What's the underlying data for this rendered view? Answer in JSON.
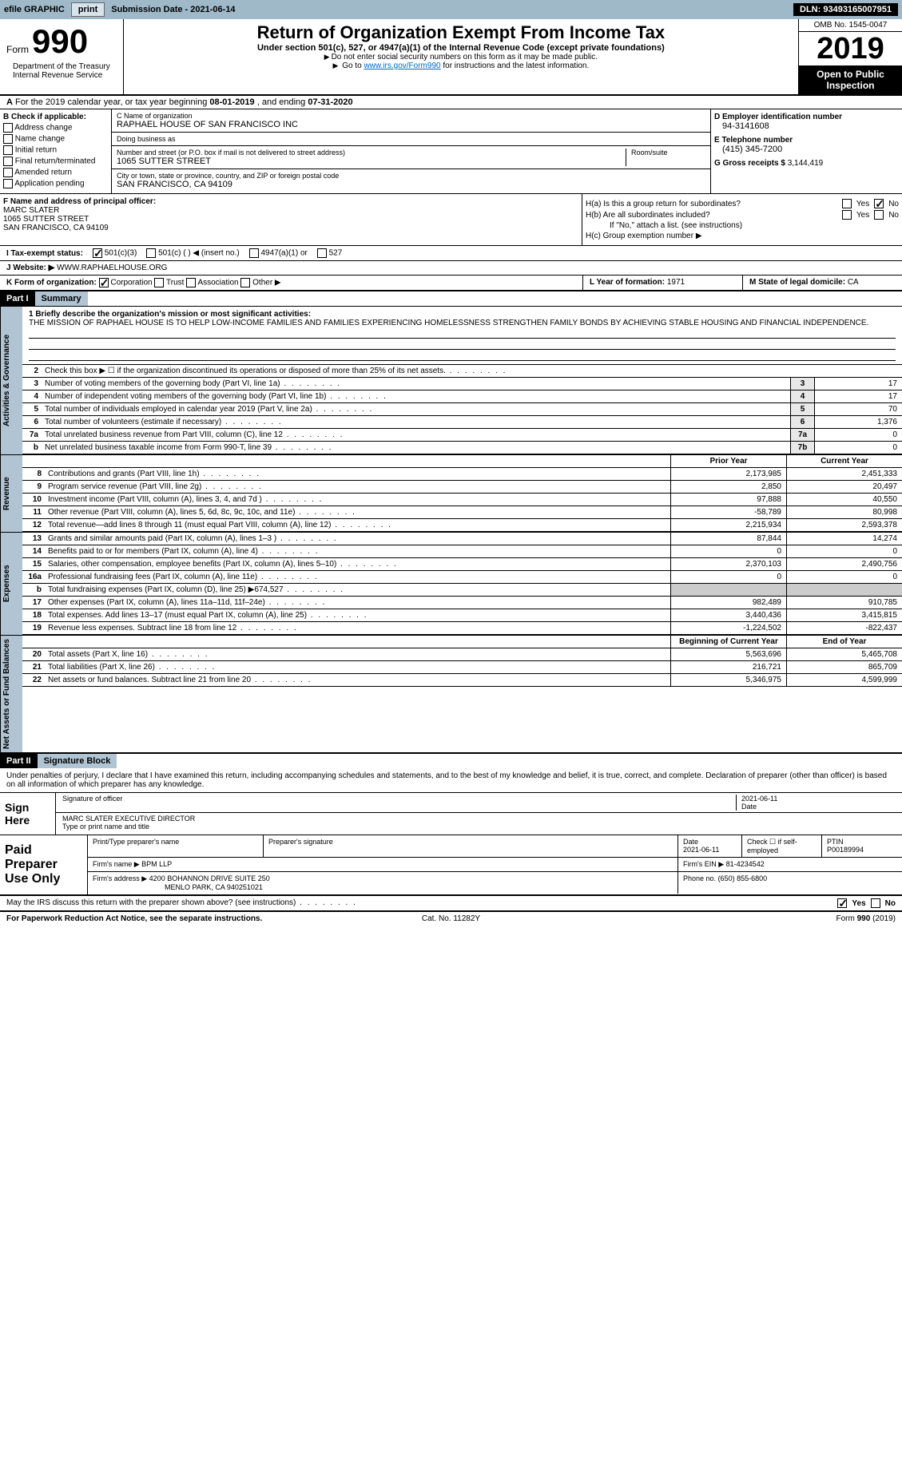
{
  "toolbar": {
    "efile": "efile GRAPHIC",
    "print": "print",
    "sub_label": "Submission Date - ",
    "sub_date": "2021-06-14",
    "dln": "DLN: 93493165007951"
  },
  "header": {
    "form_word": "Form",
    "form_num": "990",
    "title": "Return of Organization Exempt From Income Tax",
    "subtitle": "Under section 501(c), 527, or 4947(a)(1) of the Internal Revenue Code (except private foundations)",
    "note1": "Do not enter social security numbers on this form as it may be made public.",
    "note2_pre": "Go to ",
    "note2_link": "www.irs.gov/Form990",
    "note2_post": " for instructions and the latest information.",
    "omb": "OMB No. 1545-0047",
    "year": "2019",
    "open_pub": "Open to Public Inspection",
    "dept": "Department of the Treasury\nInternal Revenue Service"
  },
  "row_a": {
    "prefix": "A",
    "text": "For the 2019 calendar year, or tax year beginning ",
    "begin": "08-01-2019",
    "mid": " , and ending ",
    "end": "07-31-2020"
  },
  "b": {
    "label": "B Check if applicable:",
    "opts": [
      "Address change",
      "Name change",
      "Initial return",
      "Final return/terminated",
      "Amended return",
      "Application pending"
    ]
  },
  "c": {
    "name_label": "C Name of organization",
    "name": "RAPHAEL HOUSE OF SAN FRANCISCO INC",
    "dba_label": "Doing business as",
    "dba": "",
    "addr_label": "Number and street (or P.O. box if mail is not delivered to street address)",
    "room_label": "Room/suite",
    "addr": "1065 SUTTER STREET",
    "city_label": "City or town, state or province, country, and ZIP or foreign postal code",
    "city": "SAN FRANCISCO, CA  94109"
  },
  "d": {
    "ein_label": "D Employer identification number",
    "ein": "94-3141608",
    "phone_label": "E Telephone number",
    "phone": "(415) 345-7200",
    "gross_label": "G Gross receipts $ ",
    "gross": "3,144,419"
  },
  "f": {
    "label": "F Name and address of principal officer:",
    "name": "MARC SLATER",
    "addr1": "1065 SUTTER STREET",
    "addr2": "SAN FRANCISCO, CA  94109"
  },
  "h": {
    "a_label": "H(a)  Is this a group return for subordinates?",
    "b_label": "H(b)  Are all subordinates included?",
    "b_note": "If \"No,\" attach a list. (see instructions)",
    "c_label": "H(c)  Group exemption number ▶",
    "yes": "Yes",
    "no": "No"
  },
  "i": {
    "label": "I   Tax-exempt status:",
    "o1": "501(c)(3)",
    "o2": "501(c) (  ) ◀ (insert no.)",
    "o3": "4947(a)(1) or",
    "o4": "527"
  },
  "j": {
    "label": "J   Website: ▶",
    "val": "WWW.RAPHAELHOUSE.ORG"
  },
  "k": {
    "label": "K Form of organization:",
    "opts": [
      "Corporation",
      "Trust",
      "Association",
      "Other ▶"
    ],
    "l": "L Year of formation: ",
    "l_val": "1971",
    "m": "M State of legal domicile: ",
    "m_val": "CA"
  },
  "part1": {
    "num": "Part I",
    "title": "Summary"
  },
  "mission": {
    "label": "1   Briefly describe the organization's mission or most significant activities:",
    "text": "THE MISSION OF RAPHAEL HOUSE IS TO HELP LOW-INCOME FAMILIES AND FAMILIES EXPERIENCING HOMELESSNESS STRENGTHEN FAMILY BONDS BY ACHIEVING STABLE HOUSING AND FINANCIAL INDEPENDENCE."
  },
  "gov_rows": [
    {
      "n": "2",
      "d": "Check this box ▶ ☐  if the organization discontinued its operations or disposed of more than 25% of its net assets.",
      "box": "",
      "v": ""
    },
    {
      "n": "3",
      "d": "Number of voting members of the governing body (Part VI, line 1a)",
      "box": "3",
      "v": "17"
    },
    {
      "n": "4",
      "d": "Number of independent voting members of the governing body (Part VI, line 1b)",
      "box": "4",
      "v": "17"
    },
    {
      "n": "5",
      "d": "Total number of individuals employed in calendar year 2019 (Part V, line 2a)",
      "box": "5",
      "v": "70"
    },
    {
      "n": "6",
      "d": "Total number of volunteers (estimate if necessary)",
      "box": "6",
      "v": "1,376"
    },
    {
      "n": "7a",
      "d": "Total unrelated business revenue from Part VIII, column (C), line 12",
      "box": "7a",
      "v": "0"
    },
    {
      "n": "b",
      "d": "Net unrelated business taxable income from Form 990-T, line 39",
      "box": "7b",
      "v": "0"
    }
  ],
  "vtabs": {
    "gov": "Activities & Governance",
    "rev": "Revenue",
    "exp": "Expenses",
    "net": "Net Assets or Fund Balances"
  },
  "fin_hdr": {
    "py": "Prior Year",
    "cy": "Current Year",
    "boy": "Beginning of Current Year",
    "eoy": "End of Year"
  },
  "rev_rows": [
    {
      "n": "8",
      "d": "Contributions and grants (Part VIII, line 1h)",
      "py": "2,173,985",
      "cy": "2,451,333"
    },
    {
      "n": "9",
      "d": "Program service revenue (Part VIII, line 2g)",
      "py": "2,850",
      "cy": "20,497"
    },
    {
      "n": "10",
      "d": "Investment income (Part VIII, column (A), lines 3, 4, and 7d )",
      "py": "97,888",
      "cy": "40,550"
    },
    {
      "n": "11",
      "d": "Other revenue (Part VIII, column (A), lines 5, 6d, 8c, 9c, 10c, and 11e)",
      "py": "-58,789",
      "cy": "80,998"
    },
    {
      "n": "12",
      "d": "Total revenue—add lines 8 through 11 (must equal Part VIII, column (A), line 12)",
      "py": "2,215,934",
      "cy": "2,593,378"
    }
  ],
  "exp_rows": [
    {
      "n": "13",
      "d": "Grants and similar amounts paid (Part IX, column (A), lines 1–3 )",
      "py": "87,844",
      "cy": "14,274"
    },
    {
      "n": "14",
      "d": "Benefits paid to or for members (Part IX, column (A), line 4)",
      "py": "0",
      "cy": "0"
    },
    {
      "n": "15",
      "d": "Salaries, other compensation, employee benefits (Part IX, column (A), lines 5–10)",
      "py": "2,370,103",
      "cy": "2,490,756"
    },
    {
      "n": "16a",
      "d": "Professional fundraising fees (Part IX, column (A), line 11e)",
      "py": "0",
      "cy": "0"
    },
    {
      "n": "b",
      "d": "Total fundraising expenses (Part IX, column (D), line 25) ▶674,527",
      "py": "",
      "cy": "",
      "gray": true
    },
    {
      "n": "17",
      "d": "Other expenses (Part IX, column (A), lines 11a–11d, 11f–24e)",
      "py": "982,489",
      "cy": "910,785"
    },
    {
      "n": "18",
      "d": "Total expenses. Add lines 13–17 (must equal Part IX, column (A), line 25)",
      "py": "3,440,436",
      "cy": "3,415,815"
    },
    {
      "n": "19",
      "d": "Revenue less expenses. Subtract line 18 from line 12",
      "py": "-1,224,502",
      "cy": "-822,437"
    }
  ],
  "net_rows": [
    {
      "n": "20",
      "d": "Total assets (Part X, line 16)",
      "py": "5,563,696",
      "cy": "5,465,708"
    },
    {
      "n": "21",
      "d": "Total liabilities (Part X, line 26)",
      "py": "216,721",
      "cy": "865,709"
    },
    {
      "n": "22",
      "d": "Net assets or fund balances. Subtract line 21 from line 20",
      "py": "5,346,975",
      "cy": "4,599,999"
    }
  ],
  "part2": {
    "num": "Part II",
    "title": "Signature Block"
  },
  "sig_intro": "Under penalties of perjury, I declare that I have examined this return, including accompanying schedules and statements, and to the best of my knowledge and belief, it is true, correct, and complete. Declaration of preparer (other than officer) is based on all information of which preparer has any knowledge.",
  "sign": {
    "here": "Sign Here",
    "sig_label": "Signature of officer",
    "date_label": "Date",
    "date": "2021-06-11",
    "name_label": "Type or print name and title",
    "name": "MARC SLATER  EXECUTIVE DIRECTOR"
  },
  "prep": {
    "label": "Paid Preparer Use Only",
    "h1": "Print/Type preparer's name",
    "h2": "Preparer's signature",
    "h3": "Date",
    "h3v": "2021-06-11",
    "h4": "Check ☐ if self-employed",
    "h5": "PTIN",
    "h5v": "P00189994",
    "firm_label": "Firm's name    ▶",
    "firm": "BPM LLP",
    "ein_label": "Firm's EIN ▶",
    "ein": "81-4234542",
    "addr_label": "Firm's address ▶",
    "addr": "4200 BOHANNON DRIVE SUITE 250",
    "addr2": "MENLO PARK, CA  940251021",
    "phone_label": "Phone no.",
    "phone": "(650) 855-6800"
  },
  "discuss": {
    "text": "May the IRS discuss this return with the preparer shown above? (see instructions)",
    "yes": "Yes",
    "no": "No"
  },
  "footer": {
    "l": "For Paperwork Reduction Act Notice, see the separate instructions.",
    "m": "Cat. No. 11282Y",
    "r": "Form 990 (2019)"
  }
}
